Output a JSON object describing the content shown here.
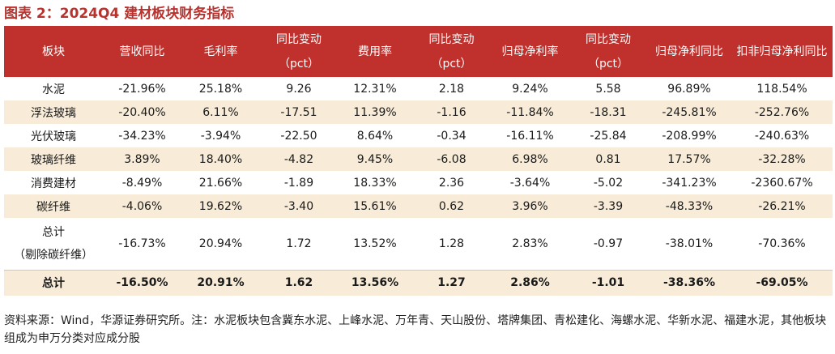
{
  "title": "图表 2：2024Q4 建材板块财务指标",
  "table": {
    "headers": [
      {
        "line1": "板块",
        "line2": ""
      },
      {
        "line1": "营收同比",
        "line2": ""
      },
      {
        "line1": "毛利率",
        "line2": ""
      },
      {
        "line1": "同比变动",
        "line2": "（pct）"
      },
      {
        "line1": "费用率",
        "line2": ""
      },
      {
        "line1": "同比变动",
        "line2": "（pct）"
      },
      {
        "line1": "归母净利率",
        "line2": ""
      },
      {
        "line1": "同比变动",
        "line2": "（pct）"
      },
      {
        "line1": "归母净利同比",
        "line2": ""
      },
      {
        "line1": "扣非归母净利同比",
        "line2": ""
      }
    ],
    "rows": [
      {
        "name": "水泥",
        "name2": "",
        "cells": [
          "-21.96%",
          "25.18%",
          "9.26",
          "12.31%",
          "2.18",
          "9.24%",
          "5.58",
          "96.89%",
          "118.54%"
        ]
      },
      {
        "name": "浮法玻璃",
        "name2": "",
        "cells": [
          "-20.40%",
          "6.11%",
          "-17.51",
          "11.39%",
          "-1.16",
          "-11.84%",
          "-18.31",
          "-245.81%",
          "-252.76%"
        ]
      },
      {
        "name": "光伏玻璃",
        "name2": "",
        "cells": [
          "-34.23%",
          "-3.94%",
          "-22.50",
          "8.64%",
          "-0.34",
          "-16.11%",
          "-25.84",
          "-208.99%",
          "-240.63%"
        ]
      },
      {
        "name": "玻璃纤维",
        "name2": "",
        "cells": [
          "3.89%",
          "18.40%",
          "-4.82",
          "9.45%",
          "-6.08",
          "6.98%",
          "0.81",
          "17.57%",
          "-32.28%"
        ]
      },
      {
        "name": "消费建材",
        "name2": "",
        "cells": [
          "-8.49%",
          "21.66%",
          "-1.89",
          "18.33%",
          "2.36",
          "-3.64%",
          "-5.02",
          "-341.23%",
          "-2360.67%"
        ]
      },
      {
        "name": "碳纤维",
        "name2": "",
        "cells": [
          "-4.06%",
          "19.62%",
          "-3.40",
          "15.61%",
          "0.62",
          "3.96%",
          "-3.39",
          "-48.33%",
          "-26.21%"
        ]
      },
      {
        "name": "总计",
        "name2": "（剔除碳纤维）",
        "cells": [
          "-16.73%",
          "20.94%",
          "1.72",
          "13.52%",
          "1.28",
          "2.83%",
          "-0.97",
          "-38.01%",
          "-70.36%"
        ]
      }
    ],
    "total": {
      "name": "总计",
      "cells": [
        "-16.50%",
        "20.91%",
        "1.62",
        "13.56%",
        "1.27",
        "2.86%",
        "-1.01",
        "-38.36%",
        "-69.05%"
      ]
    }
  },
  "source": "资料来源：Wind，华源证券研究所。注：水泥板块包含冀东水泥、上峰水泥、万年青、天山股份、塔牌集团、青松建化、海螺水泥、华新水泥、福建水泥，其他板块组成为申万分类对应成分股"
}
